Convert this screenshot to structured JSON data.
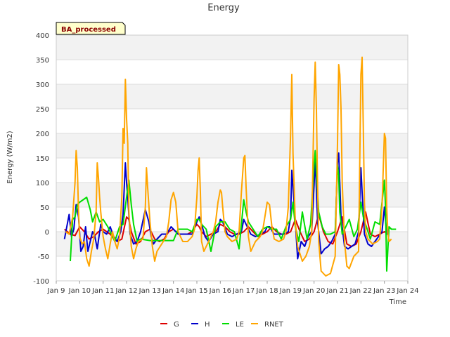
{
  "chart_data": {
    "type": "line",
    "title": "Energy",
    "xlabel": "Time",
    "ylabel": "Energy (W/m2)",
    "tag": "BA_processed",
    "xlim": [
      9,
      24
    ],
    "ylim": [
      -100,
      400
    ],
    "xticks": [
      9,
      10,
      11,
      12,
      13,
      14,
      15,
      16,
      17,
      18,
      19,
      20,
      21,
      22,
      23,
      24
    ],
    "xtick_labels": [
      "Jan 9",
      "Jan 10",
      "Jan 11",
      "Jan 12",
      "Jan 13",
      "Jan 14",
      "Jan 15",
      "Jan 16",
      "Jan 17",
      "Jan 18",
      "Jan 19",
      "Jan 20",
      "Jan 21",
      "Jan 22",
      "Jan 23",
      "Jan 24"
    ],
    "yticks": [
      -100,
      -50,
      0,
      50,
      100,
      150,
      200,
      250,
      300,
      350,
      400
    ],
    "ytick_labels": [
      "-100",
      "-50",
      "0",
      "50",
      "100",
      "150",
      "200",
      "250",
      "300",
      "350",
      "400"
    ],
    "legend_position": "bottom",
    "series": [
      {
        "name": "G",
        "color": "#dd0000",
        "x": [
          9.35,
          9.6,
          9.8,
          10.0,
          10.2,
          10.4,
          10.6,
          10.8,
          11.0,
          11.3,
          11.6,
          11.8,
          12.0,
          12.1,
          12.2,
          12.4,
          12.6,
          12.8,
          13.0,
          13.2,
          13.4,
          13.6,
          13.8,
          14.0,
          14.2,
          14.4,
          14.6,
          14.8,
          15.0,
          15.1,
          15.2,
          15.4,
          15.6,
          15.8,
          16.0,
          16.2,
          16.4,
          16.6,
          16.8,
          17.0,
          17.2,
          17.4,
          17.6,
          17.8,
          18.0,
          18.2,
          18.4,
          18.6,
          18.8,
          19.0,
          19.2,
          19.4,
          19.6,
          19.8,
          20.0,
          20.2,
          20.4,
          20.6,
          20.8,
          21.0,
          21.2,
          21.4,
          21.6,
          21.8,
          22.0,
          22.2,
          22.4,
          22.6,
          22.8,
          23.0,
          23.2
        ],
        "y": [
          5,
          -5,
          -8,
          10,
          0,
          -15,
          -10,
          0,
          5,
          -5,
          -20,
          -15,
          30,
          25,
          0,
          -25,
          -20,
          0,
          5,
          -15,
          -20,
          -15,
          0,
          5,
          -5,
          -5,
          -5,
          0,
          15,
          10,
          0,
          -10,
          -5,
          0,
          15,
          10,
          0,
          -5,
          -5,
          0,
          10,
          0,
          -10,
          -5,
          0,
          10,
          0,
          -5,
          -5,
          0,
          25,
          0,
          -20,
          -15,
          0,
          35,
          0,
          -20,
          -25,
          0,
          30,
          -25,
          -30,
          -25,
          0,
          40,
          -5,
          -10,
          -5,
          0,
          -5
        ]
      },
      {
        "name": "H",
        "color": "#0000cc",
        "x": [
          9.35,
          9.45,
          9.55,
          9.65,
          9.75,
          9.85,
          9.95,
          10.05,
          10.15,
          10.25,
          10.35,
          10.45,
          10.55,
          10.65,
          10.75,
          10.9,
          11.0,
          11.15,
          11.3,
          11.45,
          11.6,
          11.75,
          11.85,
          11.95,
          12.0,
          12.05,
          12.15,
          12.3,
          12.45,
          12.6,
          12.8,
          12.95,
          13.05,
          13.15,
          13.3,
          13.5,
          13.7,
          13.9,
          14.0,
          14.2,
          14.4,
          14.6,
          14.8,
          15.0,
          15.1,
          15.2,
          15.35,
          15.5,
          15.7,
          15.9,
          16.0,
          16.1,
          16.3,
          16.5,
          16.7,
          16.9,
          17.0,
          17.1,
          17.3,
          17.5,
          17.7,
          17.9,
          18.0,
          18.1,
          18.3,
          18.5,
          18.7,
          18.9,
          19.0,
          19.05,
          19.15,
          19.3,
          19.45,
          19.6,
          19.75,
          19.9,
          20.0,
          20.05,
          20.15,
          20.3,
          20.45,
          20.6,
          20.75,
          20.9,
          21.0,
          21.05,
          21.15,
          21.3,
          21.45,
          21.6,
          21.75,
          21.9,
          22.0,
          22.05,
          22.15,
          22.3,
          22.45,
          22.6,
          22.75,
          22.9,
          23.0,
          23.1,
          23.2
        ],
        "y": [
          -15,
          10,
          35,
          -10,
          5,
          55,
          30,
          -40,
          -30,
          10,
          -40,
          -20,
          0,
          -10,
          -35,
          15,
          0,
          -5,
          10,
          -10,
          -20,
          0,
          35,
          140,
          100,
          70,
          -5,
          -25,
          -20,
          0,
          45,
          20,
          -10,
          -25,
          -15,
          -5,
          -5,
          10,
          5,
          -5,
          -5,
          -5,
          -5,
          20,
          30,
          15,
          -10,
          -20,
          -5,
          0,
          25,
          20,
          -5,
          -10,
          -5,
          0,
          25,
          15,
          -5,
          -10,
          -5,
          0,
          10,
          10,
          -5,
          -5,
          -5,
          0,
          30,
          125,
          60,
          -55,
          -20,
          -30,
          -10,
          0,
          95,
          150,
          20,
          -45,
          -35,
          -30,
          -20,
          -5,
          140,
          160,
          30,
          -30,
          -35,
          -30,
          -25,
          0,
          130,
          80,
          -5,
          -25,
          -30,
          -20,
          -10,
          0,
          50,
          -5,
          -5
        ]
      },
      {
        "name": "LE",
        "color": "#00dd00",
        "x": [
          9.6,
          9.7,
          9.8,
          9.9,
          10.0,
          10.3,
          10.45,
          10.55,
          10.7,
          10.85,
          11.0,
          11.2,
          11.5,
          11.7,
          11.85,
          12.0,
          12.1,
          12.2,
          12.3,
          12.45,
          12.6,
          13.0,
          13.5,
          13.8,
          14.0,
          14.2,
          14.4,
          14.6,
          14.8,
          15.0,
          15.1,
          15.2,
          15.4,
          15.6,
          15.8,
          16.0,
          16.2,
          16.4,
          16.6,
          16.8,
          17.0,
          17.1,
          17.2,
          17.4,
          17.6,
          17.8,
          18.0,
          18.2,
          18.4,
          18.6,
          18.8,
          19.0,
          19.1,
          19.2,
          19.35,
          19.5,
          19.7,
          19.85,
          20.0,
          20.05,
          20.1,
          20.2,
          20.35,
          20.5,
          20.7,
          20.9,
          21.0,
          21.05,
          21.1,
          21.2,
          21.35,
          21.5,
          21.7,
          21.85,
          22.0,
          22.1,
          22.2,
          22.4,
          22.6,
          22.8,
          23.0,
          23.05,
          23.1,
          23.2,
          23.3,
          23.4,
          23.5
        ],
        "y": [
          -60,
          25,
          30,
          55,
          60,
          70,
          45,
          20,
          40,
          20,
          25,
          10,
          -20,
          10,
          15,
          70,
          105,
          55,
          15,
          -20,
          -15,
          -18,
          -18,
          -18,
          -18,
          5,
          5,
          5,
          0,
          25,
          25,
          15,
          5,
          -40,
          10,
          20,
          20,
          5,
          0,
          -35,
          65,
          40,
          20,
          5,
          -10,
          5,
          10,
          5,
          5,
          -15,
          10,
          25,
          60,
          10,
          -20,
          40,
          -15,
          15,
          135,
          165,
          120,
          40,
          10,
          -5,
          -5,
          0,
          135,
          115,
          40,
          -5,
          10,
          25,
          -10,
          5,
          60,
          30,
          15,
          -15,
          20,
          15,
          105,
          50,
          -80,
          10,
          5,
          5,
          5
        ]
      },
      {
        "name": "RNET",
        "color": "#ffa500",
        "x": [
          9.4,
          9.55,
          9.7,
          9.8,
          9.85,
          9.9,
          9.95,
          10.0,
          10.1,
          10.2,
          10.3,
          10.4,
          10.5,
          10.6,
          10.7,
          10.75,
          10.8,
          10.85,
          10.9,
          11.0,
          11.1,
          11.2,
          11.3,
          11.4,
          11.5,
          11.6,
          11.7,
          11.8,
          11.85,
          11.9,
          11.95,
          12.0,
          12.05,
          12.1,
          12.2,
          12.3,
          12.4,
          12.5,
          12.7,
          12.8,
          12.85,
          12.9,
          13.0,
          13.1,
          13.2,
          13.3,
          13.5,
          13.7,
          13.8,
          13.9,
          14.0,
          14.1,
          14.2,
          14.4,
          14.6,
          14.8,
          14.9,
          15.0,
          15.05,
          15.1,
          15.15,
          15.2,
          15.3,
          15.4,
          15.5,
          15.7,
          15.8,
          15.9,
          16.0,
          16.05,
          16.1,
          16.2,
          16.3,
          16.5,
          16.7,
          16.8,
          16.9,
          17.0,
          17.05,
          17.1,
          17.2,
          17.3,
          17.5,
          17.7,
          17.8,
          17.9,
          18.0,
          18.1,
          18.2,
          18.3,
          18.5,
          18.7,
          18.8,
          18.9,
          19.0,
          19.05,
          19.1,
          19.2,
          19.3,
          19.5,
          19.65,
          19.8,
          19.9,
          20.0,
          20.05,
          20.1,
          20.15,
          20.2,
          20.3,
          20.5,
          20.7,
          20.9,
          21.0,
          21.05,
          21.1,
          21.15,
          21.2,
          21.3,
          21.4,
          21.5,
          21.7,
          21.9,
          22.0,
          22.05,
          22.1,
          22.15,
          22.2,
          22.3,
          22.5,
          22.7,
          22.8,
          22.9,
          23.0,
          23.05,
          23.1,
          23.15,
          23.2,
          23.3
        ],
        "y": [
          0,
          -5,
          30,
          100,
          165,
          130,
          40,
          -10,
          -25,
          -20,
          -55,
          -70,
          -40,
          -15,
          40,
          140,
          110,
          70,
          40,
          -10,
          -35,
          -55,
          -25,
          0,
          -20,
          -35,
          -10,
          70,
          210,
          180,
          310,
          230,
          180,
          40,
          -30,
          -55,
          -35,
          -20,
          -15,
          50,
          130,
          90,
          20,
          -30,
          -60,
          -40,
          -25,
          -10,
          20,
          65,
          80,
          60,
          0,
          -20,
          -20,
          -10,
          5,
          70,
          125,
          150,
          80,
          -20,
          -40,
          -30,
          -20,
          0,
          20,
          60,
          85,
          80,
          50,
          0,
          -10,
          -20,
          -15,
          0,
          80,
          150,
          155,
          90,
          -10,
          -40,
          -20,
          -10,
          0,
          30,
          60,
          55,
          10,
          -15,
          -20,
          -15,
          0,
          50,
          200,
          320,
          160,
          20,
          -30,
          -60,
          -50,
          -30,
          0,
          270,
          345,
          250,
          90,
          -20,
          -80,
          -90,
          -85,
          -50,
          180,
          340,
          320,
          250,
          100,
          -20,
          -70,
          -75,
          -50,
          -40,
          320,
          355,
          210,
          60,
          0,
          -15,
          -25,
          -20,
          -15,
          50,
          200,
          190,
          50,
          -5,
          -20,
          -15
        ]
      }
    ]
  }
}
